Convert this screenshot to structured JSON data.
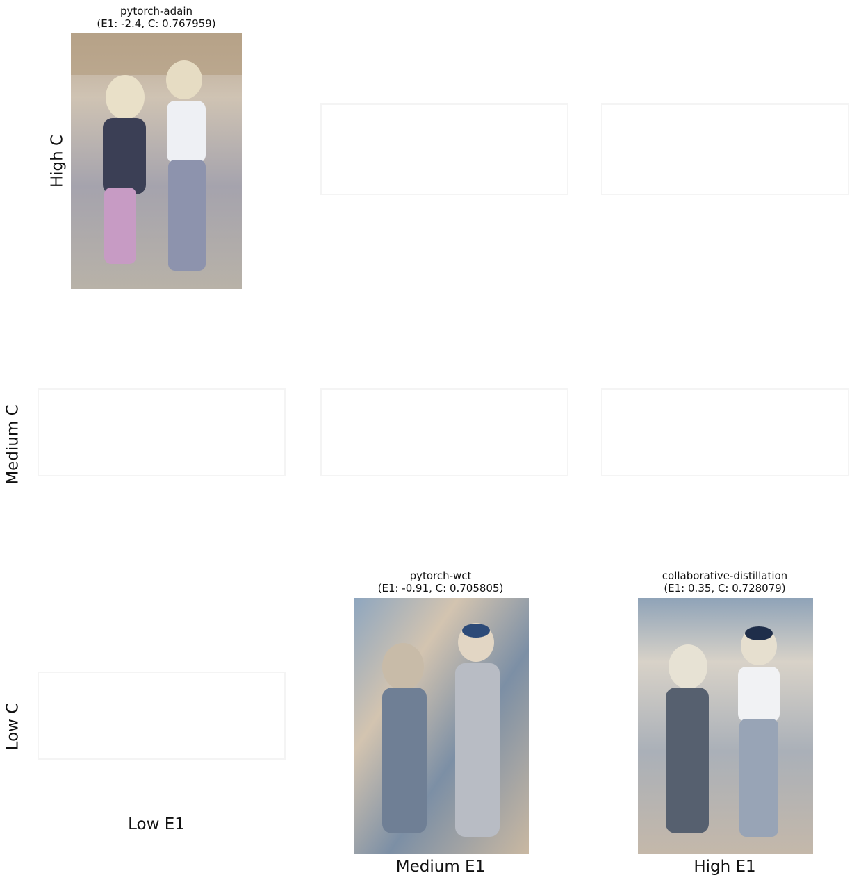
{
  "grid": {
    "row_labels": [
      "High C",
      "Medium C",
      "Low C"
    ],
    "col_labels": [
      "Low E1",
      "Medium E1",
      "High E1"
    ],
    "cells": [
      [
        {
          "title": [
            "pytorch-adain",
            "(E1: -2.4, C: 0.767959)"
          ]
        },
        null,
        null
      ],
      [
        null,
        null,
        null
      ],
      [
        null,
        {
          "title": [
            "pytorch-wct",
            "(E1: -0.91, C: 0.705805)"
          ]
        },
        {
          "title": [
            "collaborative-distillation",
            "(E1: 0.35, C: 0.728079)"
          ]
        }
      ]
    ]
  }
}
